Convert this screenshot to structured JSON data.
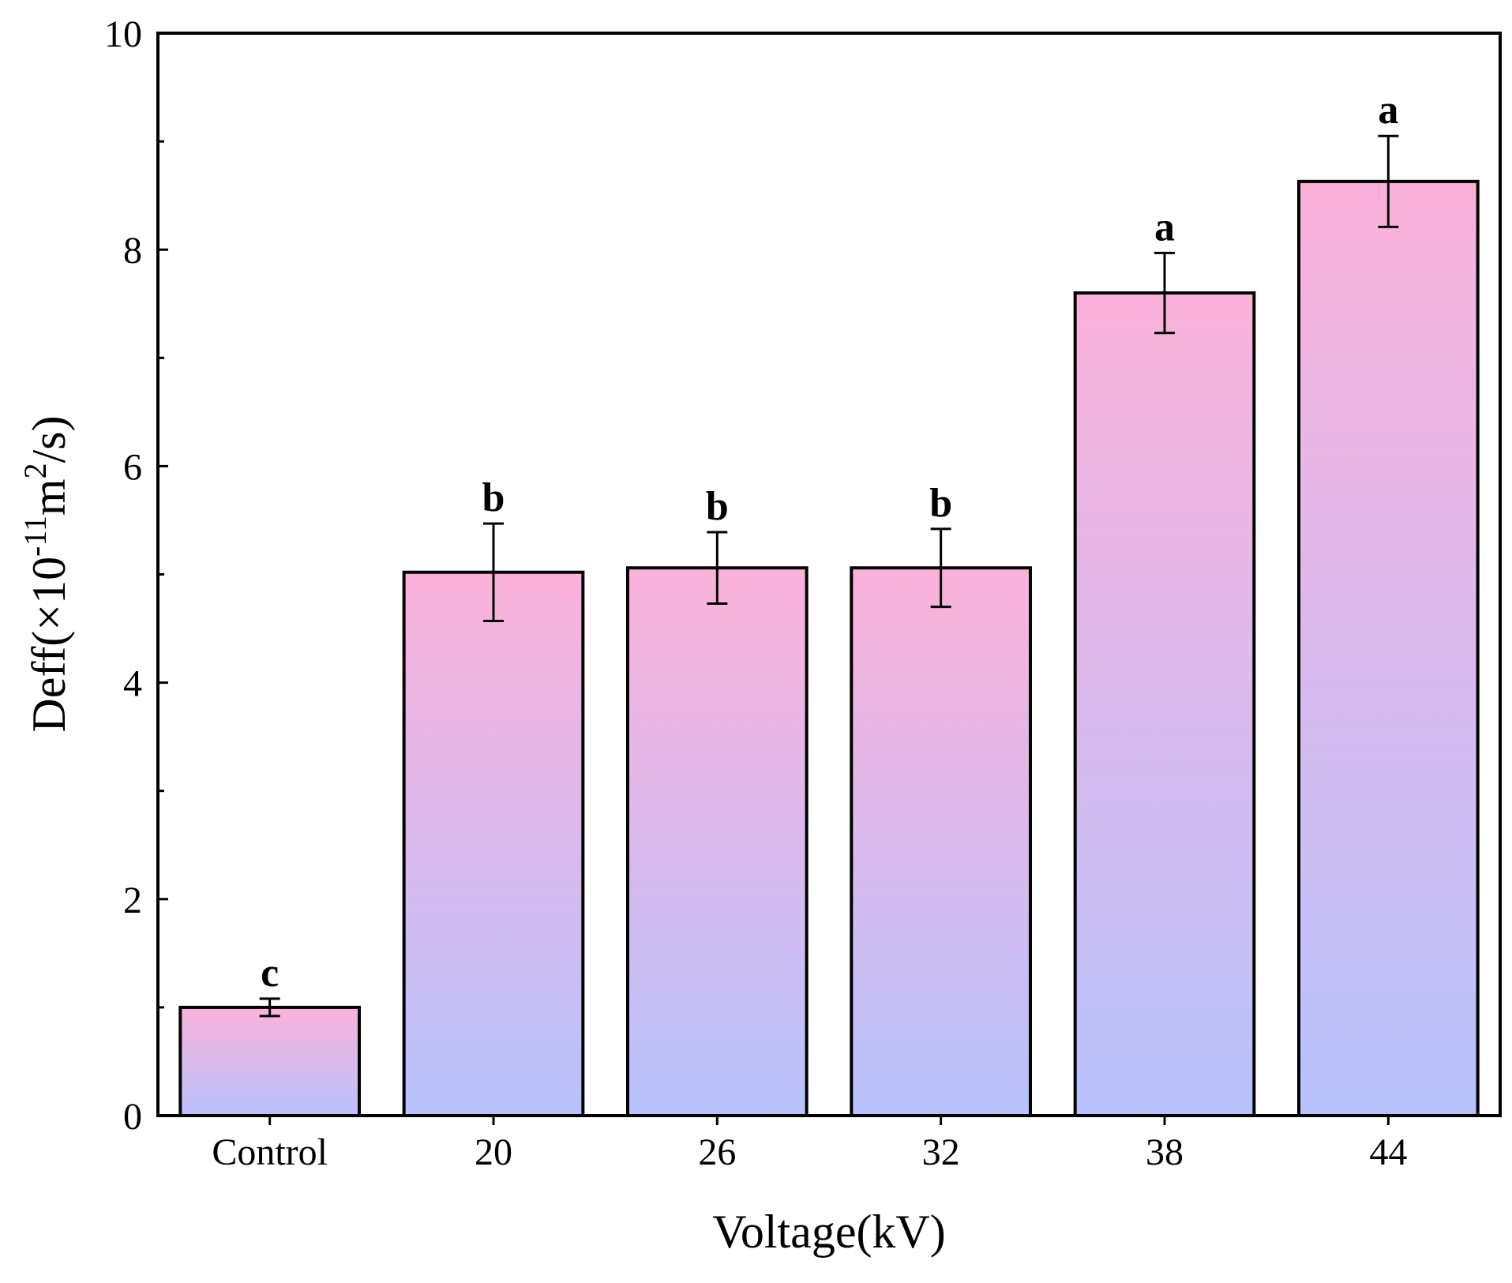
{
  "chart_data": {
    "type": "bar",
    "title": "",
    "xlabel": "Voltage(kV)",
    "ylabel": {
      "prefix": "Deff(×10",
      "exp1": "-11",
      "mid": "m",
      "exp2": "2",
      "suffix": "/s)"
    },
    "categories": [
      "Control",
      "20",
      "26",
      "32",
      "38",
      "44"
    ],
    "values": [
      1.0,
      5.02,
      5.06,
      5.06,
      7.6,
      8.63
    ],
    "errors": [
      0.08,
      0.45,
      0.33,
      0.36,
      0.37,
      0.42
    ],
    "significance": [
      "c",
      "b",
      "b",
      "b",
      "a",
      "a"
    ],
    "ylim": [
      0,
      10
    ],
    "yticks": [
      "0",
      "2",
      "4",
      "6",
      "8",
      "10"
    ],
    "grid": false,
    "legend": "none",
    "colors": {
      "bar_top": "#fbb2da",
      "bar_bottom": "#b8c2fd",
      "axis": "#000000"
    }
  }
}
